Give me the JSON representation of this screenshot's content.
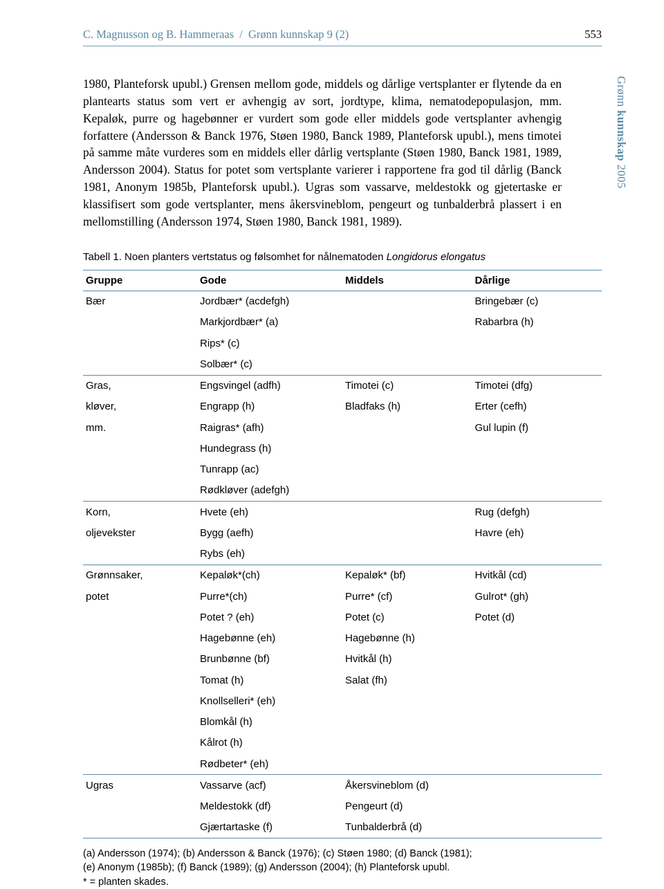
{
  "header": {
    "authors": "C. Magnusson og B. Hammeraas",
    "separator": "/",
    "journal": "Grønn kunnskap 9 (2)",
    "page": "553"
  },
  "sidebar": {
    "journal": "Grønn",
    "bold_part": "kunnskap",
    "year": "2005"
  },
  "body_paragraph": "1980, Planteforsk upubl.) Grensen mellom gode, middels og dårlige vertsplanter er flytende da en plantearts status som vert er avhengig av sort, jordtype, klima, nematodepopulasjon, mm. Kepaløk, purre og hagebønner er vurdert som gode eller middels gode vertsplanter avhengig forfattere (Andersson & Banck 1976, Støen 1980, Banck 1989, Planteforsk upubl.), mens timotei på samme måte vurderes som en middels eller dårlig vertsplante (Støen 1980, Banck 1981, 1989, Andersson 2004). Status for potet som vertsplante varierer i rapportene fra god til dårlig (Banck 1981, Anonym 1985b, Planteforsk upubl.). Ugras som vassarve, meldestokk og gjetertaske er klassifisert som gode vertsplanter, mens åkersvineblom, pengeurt og tunbalderbrå plassert i en mellomstilling (Andersson 1974, Støen 1980, Banck 1981, 1989).",
  "table": {
    "caption_prefix": "Tabell 1. Noen planters vertstatus og følsomhet for nålnematoden ",
    "caption_italic": "Longidorus elongatus",
    "columns": [
      "Gruppe",
      "Gode",
      "Middels",
      "Dårlige"
    ],
    "groups": [
      {
        "label_lines": [
          "Bær"
        ],
        "rows": [
          [
            "Jordbær* (acdefgh)",
            "",
            "Bringebær (c)"
          ],
          [
            "Markjordbær* (a)",
            "",
            "Rabarbra (h)"
          ],
          [
            "Rips* (c)",
            "",
            ""
          ],
          [
            "Solbær* (c)",
            "",
            ""
          ]
        ]
      },
      {
        "label_lines": [
          "Gras,",
          "kløver,",
          "mm."
        ],
        "rows": [
          [
            "Engsvingel (adfh)",
            "Timotei (c)",
            "Timotei (dfg)"
          ],
          [
            "Engrapp (h)",
            "Bladfaks (h)",
            "Erter (cefh)"
          ],
          [
            "Raigras* (afh)",
            "",
            "Gul lupin (f)"
          ],
          [
            "Hundegrass (h)",
            "",
            ""
          ],
          [
            "Tunrapp (ac)",
            "",
            ""
          ],
          [
            "Rødkløver (adefgh)",
            "",
            ""
          ]
        ]
      },
      {
        "label_lines": [
          "Korn,",
          "oljevekster"
        ],
        "rows": [
          [
            "Hvete (eh)",
            "",
            "Rug (defgh)"
          ],
          [
            "Bygg (aefh)",
            "",
            "Havre (eh)"
          ],
          [
            "Rybs (eh)",
            "",
            ""
          ]
        ]
      },
      {
        "label_lines": [
          "Grønnsaker,",
          "potet"
        ],
        "rows": [
          [
            "Kepaløk*(ch)",
            "Kepaløk* (bf)",
            "Hvitkål (cd)"
          ],
          [
            "Purre*(ch)",
            "Purre* (cf)",
            "Gulrot* (gh)"
          ],
          [
            "Potet ? (eh)",
            "Potet (c)",
            "Potet (d)"
          ],
          [
            "Hagebønne (eh)",
            "Hagebønne (h)",
            ""
          ],
          [
            "Brunbønne (bf)",
            "Hvitkål (h)",
            ""
          ],
          [
            "Tomat (h)",
            "Salat (fh)",
            ""
          ],
          [
            "Knollselleri* (eh)",
            "",
            ""
          ],
          [
            "Blomkål (h)",
            "",
            ""
          ],
          [
            "Kålrot (h)",
            "",
            ""
          ],
          [
            "Rødbeter* (eh)",
            "",
            ""
          ]
        ]
      },
      {
        "label_lines": [
          "Ugras"
        ],
        "rows": [
          [
            "Vassarve (acf)",
            "Åkersvineblom (d)",
            ""
          ],
          [
            "Meldestokk (df)",
            "Pengeurt (d)",
            ""
          ],
          [
            "Gjærtartaske (f)",
            "Tunbalderbrå (d)",
            ""
          ]
        ]
      }
    ]
  },
  "footnote_line1": "(a) Andersson (1974); (b) Andersson & Banck (1976); (c) Støen 1980; (d) Banck (1981);",
  "footnote_line2": "(e) Anonym (1985b); (f) Banck (1989); (g) Andersson (2004); (h) Planteforsk upubl.",
  "footnote_line3": "* = planten skades."
}
